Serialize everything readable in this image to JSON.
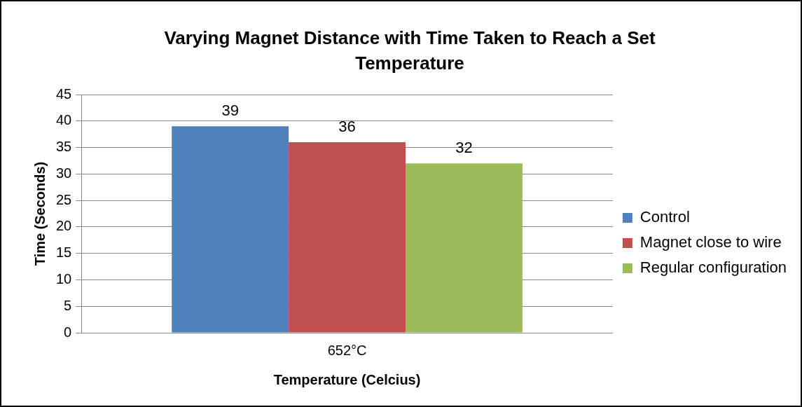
{
  "chart_data": {
    "type": "bar",
    "title": "Varying Magnet Distance with Time Taken to Reach a Set Temperature",
    "xlabel": "Temperature (Celcius)",
    "ylabel": "Time (Seconds)",
    "categories": [
      "652°C"
    ],
    "series": [
      {
        "name": "Control",
        "color": "#4f81bd",
        "values": [
          39
        ]
      },
      {
        "name": "Magnet close to wire",
        "color": "#c0504d",
        "values": [
          36
        ]
      },
      {
        "name": "Regular configuration",
        "color": "#9bbb59",
        "values": [
          32
        ]
      }
    ],
    "ylim": [
      0,
      45
    ],
    "yticks": [
      0,
      5,
      10,
      15,
      20,
      25,
      30,
      35,
      40,
      45
    ],
    "grid": "y",
    "legend": "right",
    "data_labels": true
  }
}
